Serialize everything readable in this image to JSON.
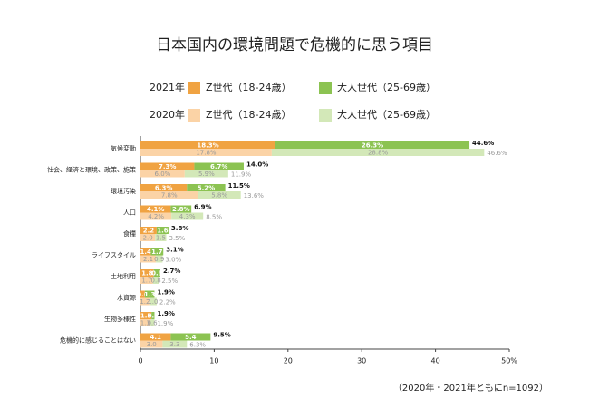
{
  "chart_data": {
    "type": "bar",
    "orientation": "horizontal",
    "stacked": true,
    "title": "日本国内の環境問題で危機的に思う項目",
    "note": "（2020年・2021年ともにn=1092）",
    "categories": [
      "気候変動",
      "社会、経済と環境、政策、施策",
      "環境汚染",
      "人口",
      "食糧",
      "ライフスタイル",
      "土地利用",
      "水資源",
      "生物多様性",
      "危機的に感じることはない"
    ],
    "groups": [
      {
        "label": "2021年",
        "series": [
          {
            "name": "Z世代（18-24歳）",
            "color": "#f0a342",
            "values": [
              18.3,
              7.3,
              6.3,
              4.1,
              2.2,
              1.4,
              1.8,
              0.6,
              1.5,
              4.1
            ],
            "value_labels": [
              "18.3%",
              "7.3%",
              "6.3%",
              "4.1%",
              "2.2",
              "1.4",
              "1.8",
              "0.6",
              "1.5",
              "4.1"
            ]
          },
          {
            "name": "大人世代（25-69歳）",
            "color": "#8cc352",
            "values": [
              26.3,
              6.7,
              5.2,
              2.8,
              1.6,
              1.7,
              0.9,
              1.3,
              0.4,
              5.4
            ],
            "value_labels": [
              "26.3%",
              "6.7%",
              "5.2%",
              "2.8%",
              "1.6",
              "1.7",
              "0.9",
              "1.3",
              "0.4",
              "5.4"
            ]
          }
        ],
        "totals": [
          44.6,
          14.0,
          11.5,
          6.9,
          3.8,
          3.1,
          2.7,
          1.9,
          1.9,
          9.5
        ],
        "total_labels": [
          "44.6%",
          "14.0%",
          "11.5%",
          "6.9%",
          "3.8%",
          "3.1%",
          "2.7%",
          "1.9%",
          "1.9%",
          "9.5%"
        ]
      },
      {
        "label": "2020年",
        "series": [
          {
            "name": "Z世代（18-24歳）",
            "color": "#fbd3a6",
            "values": [
              17.8,
              6.0,
              7.8,
              4.2,
              2.0,
              2.1,
              1.7,
              1.2,
              1.3,
              3.0
            ],
            "value_labels": [
              "17.8%",
              "6.0%",
              "7.8%",
              "4.2%",
              "2.0",
              "2.1",
              "1.7",
              "1.2",
              "1.3",
              "3.0"
            ]
          },
          {
            "name": "大人世代（25-69歳）",
            "color": "#d3e8b8",
            "values": [
              28.8,
              5.9,
              5.8,
              4.3,
              1.5,
              0.9,
              0.8,
              1.0,
              0.6,
              3.3
            ],
            "value_labels": [
              "28.8%",
              "5.9%",
              "5.8%",
              "4.3%",
              "1.5",
              "0.9",
              "0.8",
              "1.0",
              "0.6",
              "3.3"
            ]
          }
        ],
        "totals": [
          46.6,
          11.9,
          13.6,
          8.5,
          3.5,
          3.0,
          2.5,
          2.2,
          1.9,
          6.3
        ],
        "total_labels": [
          "46.6%",
          "11.9%",
          "13.6%",
          "8.5%",
          "3.5%",
          "3.0%",
          "2.5%",
          "2.2%",
          "1.9%",
          "6.3%"
        ]
      }
    ],
    "xlim": [
      0,
      50
    ],
    "xticks": [
      0,
      10,
      20,
      30,
      40,
      {
        "value": 50,
        "label": "50%"
      }
    ]
  }
}
